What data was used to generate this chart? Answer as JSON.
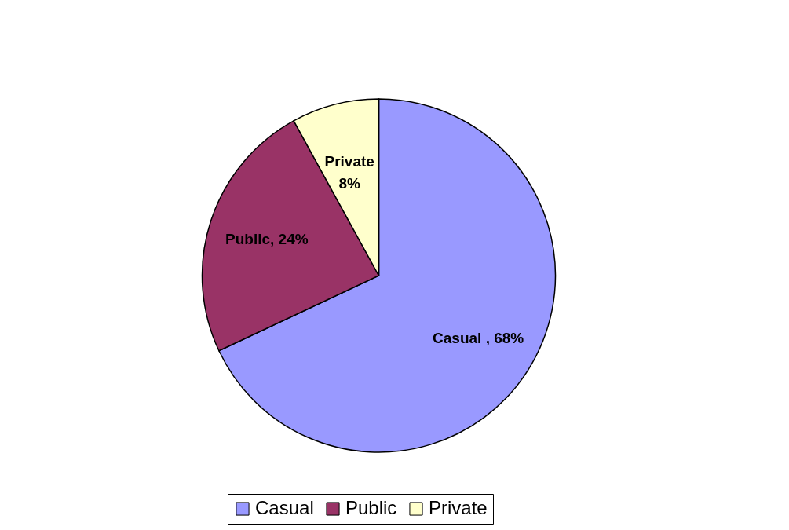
{
  "chart_data": {
    "type": "pie",
    "categories": [
      "Casual",
      "Public",
      "Private"
    ],
    "values": [
      68,
      24,
      8
    ],
    "colors": [
      "#9999ff",
      "#993366",
      "#ffffcc"
    ],
    "value_labels": [
      "Casual , 68%",
      "Public, 24%",
      "Private\n8%"
    ],
    "legend": "bottom"
  }
}
